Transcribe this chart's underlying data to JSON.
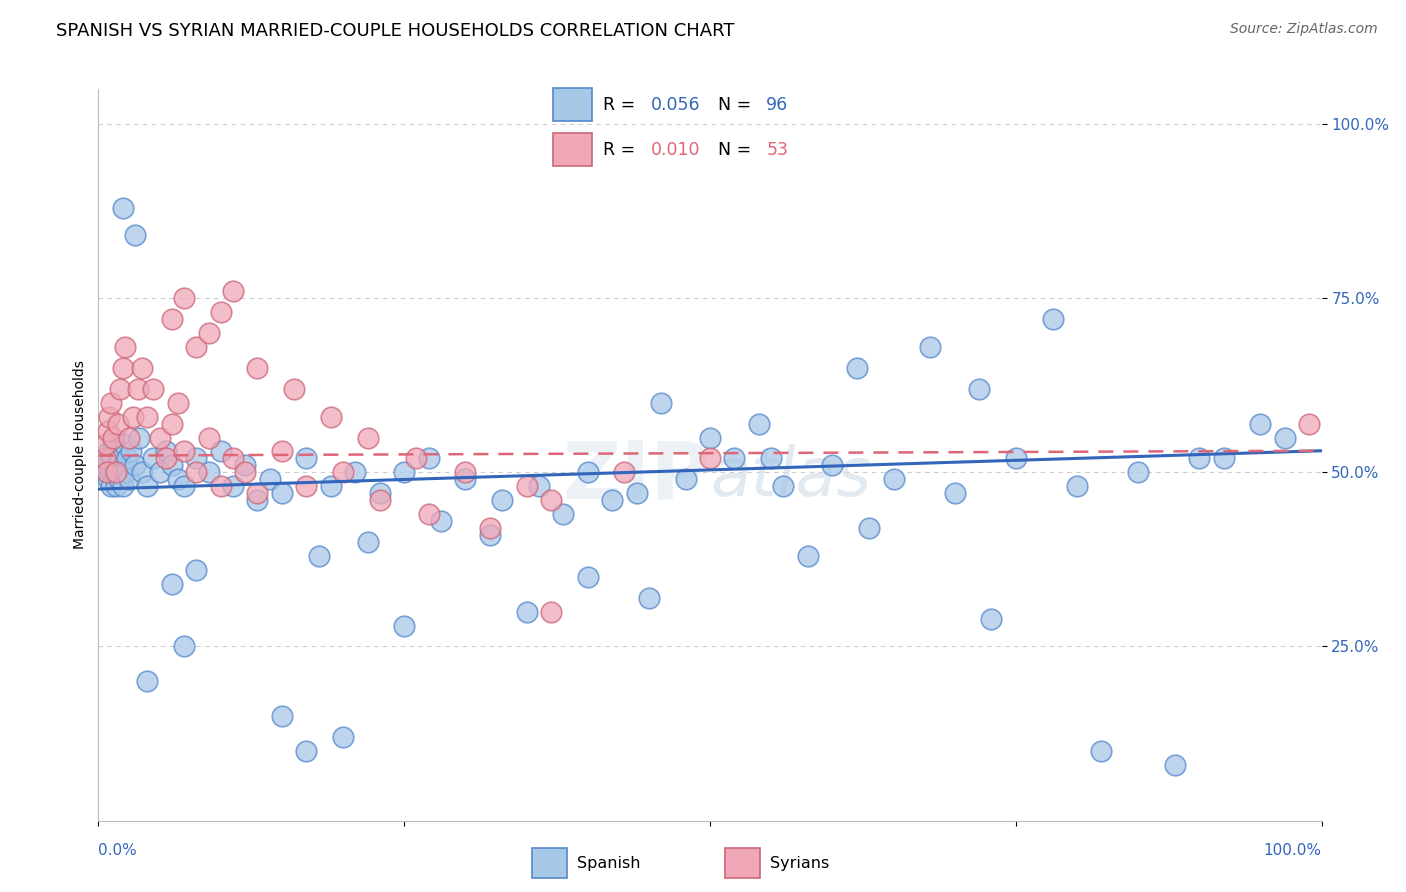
{
  "title": "SPANISH VS SYRIAN MARRIED-COUPLE HOUSEHOLDS CORRELATION CHART",
  "source": "Source: ZipAtlas.com",
  "ylabel": "Married-couple Households",
  "blue_color": "#a8c8e8",
  "pink_color": "#f0a8b8",
  "blue_edge": "#5588cc",
  "pink_edge": "#cc6677",
  "blue_line_color": "#3366bb",
  "pink_line_color": "#dd6677",
  "grid_color": "#cccccc",
  "background_color": "#ffffff",
  "title_fontsize": 13,
  "axis_label_fontsize": 10,
  "tick_fontsize": 11,
  "source_fontsize": 10,
  "watermark": "ZIPatlas",
  "blue_x": [
    0.005,
    0.006,
    0.007,
    0.008,
    0.009,
    0.01,
    0.01,
    0.011,
    0.012,
    0.013,
    0.014,
    0.015,
    0.016,
    0.017,
    0.018,
    0.019,
    0.02,
    0.021,
    0.022,
    0.023,
    0.025,
    0.027,
    0.03,
    0.033,
    0.036,
    0.04,
    0.045,
    0.05,
    0.055,
    0.06,
    0.065,
    0.07,
    0.08,
    0.09,
    0.1,
    0.11,
    0.12,
    0.13,
    0.14,
    0.15,
    0.17,
    0.19,
    0.21,
    0.23,
    0.25,
    0.27,
    0.3,
    0.33,
    0.36,
    0.4,
    0.44,
    0.48,
    0.52,
    0.56,
    0.6,
    0.65,
    0.7,
    0.75,
    0.8,
    0.85,
    0.9,
    0.95,
    0.38,
    0.42,
    0.28,
    0.32,
    0.18,
    0.22,
    0.08,
    0.06,
    0.5,
    0.55,
    0.46,
    0.54,
    0.62,
    0.68,
    0.72,
    0.78,
    0.35,
    0.25,
    0.15,
    0.17,
    0.2,
    0.4,
    0.45,
    0.58,
    0.63,
    0.73,
    0.82,
    0.88,
    0.92,
    0.97,
    0.04,
    0.07,
    0.03,
    0.02
  ],
  "blue_y": [
    0.5,
    0.52,
    0.51,
    0.49,
    0.53,
    0.5,
    0.48,
    0.52,
    0.54,
    0.5,
    0.48,
    0.51,
    0.53,
    0.49,
    0.52,
    0.5,
    0.48,
    0.54,
    0.5,
    0.52,
    0.49,
    0.53,
    0.51,
    0.55,
    0.5,
    0.48,
    0.52,
    0.5,
    0.53,
    0.51,
    0.49,
    0.48,
    0.52,
    0.5,
    0.53,
    0.48,
    0.51,
    0.46,
    0.49,
    0.47,
    0.52,
    0.48,
    0.5,
    0.47,
    0.5,
    0.52,
    0.49,
    0.46,
    0.48,
    0.5,
    0.47,
    0.49,
    0.52,
    0.48,
    0.51,
    0.49,
    0.47,
    0.52,
    0.48,
    0.5,
    0.52,
    0.57,
    0.44,
    0.46,
    0.43,
    0.41,
    0.38,
    0.4,
    0.36,
    0.34,
    0.55,
    0.52,
    0.6,
    0.57,
    0.65,
    0.68,
    0.62,
    0.72,
    0.3,
    0.28,
    0.15,
    0.1,
    0.12,
    0.35,
    0.32,
    0.38,
    0.42,
    0.29,
    0.1,
    0.08,
    0.52,
    0.55,
    0.2,
    0.25,
    0.84,
    0.88
  ],
  "pink_x": [
    0.005,
    0.006,
    0.007,
    0.008,
    0.009,
    0.01,
    0.012,
    0.014,
    0.016,
    0.018,
    0.02,
    0.022,
    0.025,
    0.028,
    0.032,
    0.036,
    0.04,
    0.045,
    0.05,
    0.055,
    0.06,
    0.065,
    0.07,
    0.08,
    0.09,
    0.1,
    0.11,
    0.12,
    0.13,
    0.15,
    0.17,
    0.2,
    0.23,
    0.27,
    0.32,
    0.37,
    0.43,
    0.5,
    0.37,
    0.99,
    0.06,
    0.07,
    0.08,
    0.09,
    0.1,
    0.11,
    0.13,
    0.16,
    0.19,
    0.22,
    0.26,
    0.3,
    0.35
  ],
  "pink_y": [
    0.52,
    0.54,
    0.5,
    0.56,
    0.58,
    0.6,
    0.55,
    0.5,
    0.57,
    0.62,
    0.65,
    0.68,
    0.55,
    0.58,
    0.62,
    0.65,
    0.58,
    0.62,
    0.55,
    0.52,
    0.57,
    0.6,
    0.53,
    0.5,
    0.55,
    0.48,
    0.52,
    0.5,
    0.47,
    0.53,
    0.48,
    0.5,
    0.46,
    0.44,
    0.42,
    0.46,
    0.5,
    0.52,
    0.3,
    0.57,
    0.72,
    0.75,
    0.68,
    0.7,
    0.73,
    0.76,
    0.65,
    0.62,
    0.58,
    0.55,
    0.52,
    0.5,
    0.48
  ],
  "blue_trend": [
    0.476,
    0.531
  ],
  "pink_trend": [
    0.524,
    0.531
  ]
}
